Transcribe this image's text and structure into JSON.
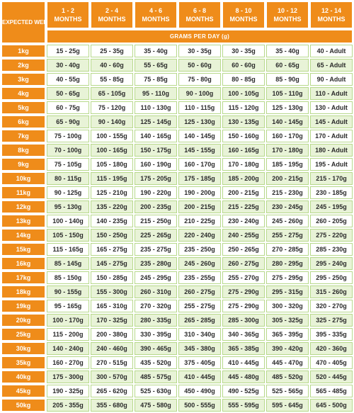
{
  "header": {
    "corner": "EXPECTED WEIGHT OF ADULT DOG (kg)",
    "ages": [
      [
        "1 - 2",
        "MONTHS"
      ],
      [
        "2 - 4",
        "MONTHS"
      ],
      [
        "4 - 6",
        "MONTHS"
      ],
      [
        "6 - 8",
        "MONTHS"
      ],
      [
        "8 - 10",
        "MONTHS"
      ],
      [
        "10 - 12",
        "MONTHS"
      ],
      [
        "12 - 14",
        "MONTHS"
      ]
    ],
    "subheader": "GRAMS PER DAY (g)"
  },
  "rows": [
    {
      "weight": "1kg",
      "values": [
        "15 - 25g",
        "25 - 35g",
        "35 - 40g",
        "30 - 35g",
        "30 - 35g",
        "35 - 40g",
        "40 - Adult"
      ]
    },
    {
      "weight": "2kg",
      "values": [
        "30 - 40g",
        "40 - 60g",
        "55 - 65g",
        "50 - 60g",
        "60 - 60g",
        "60 - 65g",
        "65 - Adult"
      ]
    },
    {
      "weight": "3kg",
      "values": [
        "40 - 55g",
        "55 - 85g",
        "75 - 85g",
        "75 - 80g",
        "80 - 85g",
        "85 - 90g",
        "90 - Adult"
      ]
    },
    {
      "weight": "4kg",
      "values": [
        "50 - 65g",
        "65 - 105g",
        "95 - 110g",
        "90 - 100g",
        "100 - 105g",
        "105 - 110g",
        "110 - Adult"
      ]
    },
    {
      "weight": "5kg",
      "values": [
        "60 - 75g",
        "75 - 120g",
        "110 - 130g",
        "110 - 115g",
        "115 - 120g",
        "125 - 130g",
        "130 - Adult"
      ]
    },
    {
      "weight": "6kg",
      "values": [
        "65 - 90g",
        "90 - 140g",
        "125 - 145g",
        "125 - 130g",
        "130 - 135g",
        "140 - 145g",
        "145 - Adult"
      ]
    },
    {
      "weight": "7kg",
      "values": [
        "75 - 100g",
        "100 - 155g",
        "140 - 165g",
        "140 - 145g",
        "150 - 160g",
        "160 - 170g",
        "170 - Adult"
      ]
    },
    {
      "weight": "8kg",
      "values": [
        "70 - 100g",
        "100 - 165g",
        "150 - 175g",
        "145 - 155g",
        "160 - 165g",
        "170 - 180g",
        "180 - Adult"
      ]
    },
    {
      "weight": "9kg",
      "values": [
        "75 - 105g",
        "105 - 180g",
        "160 - 190g",
        "160 - 170g",
        "170 - 180g",
        "185 - 195g",
        "195 - Adult"
      ]
    },
    {
      "weight": "10kg",
      "values": [
        "80 - 115g",
        "115 - 195g",
        "175 - 205g",
        "175 - 185g",
        "185 - 200g",
        "200 - 215g",
        "215 - 170g"
      ]
    },
    {
      "weight": "11kg",
      "values": [
        "90 - 125g",
        "125 - 210g",
        "190 - 220g",
        "190 - 200g",
        "200 - 215g",
        "215 - 230g",
        "230 - 185g"
      ]
    },
    {
      "weight": "12kg",
      "values": [
        "95 - 130g",
        "135 - 220g",
        "200 - 235g",
        "200 - 215g",
        "215 - 225g",
        "230 - 245g",
        "245 - 195g"
      ]
    },
    {
      "weight": "13kg",
      "values": [
        "100 - 140g",
        "140 - 235g",
        "215 - 250g",
        "210 - 225g",
        "230 - 240g",
        "245 - 260g",
        "260 - 205g"
      ]
    },
    {
      "weight": "14kg",
      "values": [
        "105 - 150g",
        "150 - 250g",
        "225 - 265g",
        "220 - 240g",
        "240 - 255g",
        "255 - 275g",
        "275 - 220g"
      ]
    },
    {
      "weight": "15kg",
      "values": [
        "115 - 165g",
        "165 - 275g",
        "235 - 275g",
        "235 - 250g",
        "250 - 265g",
        "270 - 285g",
        "285 - 230g"
      ]
    },
    {
      "weight": "16kg",
      "values": [
        "85 - 145g",
        "145 - 275g",
        "235 - 280g",
        "245 - 260g",
        "260 - 275g",
        "280 - 295g",
        "295 - 240g"
      ]
    },
    {
      "weight": "17kg",
      "values": [
        "85 - 150g",
        "150 - 285g",
        "245 - 295g",
        "235 - 255g",
        "255 - 270g",
        "275 - 295g",
        "295 - 250g"
      ]
    },
    {
      "weight": "18kg",
      "values": [
        "90 - 155g",
        "155 - 300g",
        "260 - 310g",
        "260 - 275g",
        "275 - 290g",
        "295 - 315g",
        "315 - 260g"
      ]
    },
    {
      "weight": "19kg",
      "values": [
        "95 - 165g",
        "165 - 310g",
        "270 - 320g",
        "255 - 275g",
        "275 - 290g",
        "300 - 320g",
        "320 - 270g"
      ]
    },
    {
      "weight": "20kg",
      "values": [
        "100 - 170g",
        "170 - 325g",
        "280 - 335g",
        "265 - 285g",
        "285 - 300g",
        "305 - 325g",
        "325 - 275g"
      ]
    },
    {
      "weight": "25kg",
      "values": [
        "115 - 200g",
        "200 - 380g",
        "330 - 395g",
        "310 - 340g",
        "340 - 365g",
        "365 - 395g",
        "395 - 335g"
      ]
    },
    {
      "weight": "30kg",
      "values": [
        "140 - 240g",
        "240 - 460g",
        "390 - 465g",
        "345 - 380g",
        "365 - 385g",
        "390 - 420g",
        "420 - 360g"
      ]
    },
    {
      "weight": "35kg",
      "values": [
        "160 - 270g",
        "270 - 515g",
        "435 - 520g",
        "375 - 405g",
        "410 - 445g",
        "445 - 470g",
        "470 - 405g"
      ]
    },
    {
      "weight": "40kg",
      "values": [
        "175 - 300g",
        "300 - 570g",
        "485 - 575g",
        "410 - 445g",
        "445 - 480g",
        "485 - 520g",
        "520 - 445g"
      ]
    },
    {
      "weight": "45kg",
      "values": [
        "190 - 325g",
        "265 - 620g",
        "525 - 630g",
        "450 - 490g",
        "490 - 525g",
        "525 - 565g",
        "565 - 485g"
      ]
    },
    {
      "weight": "50kg",
      "values": [
        "205 - 355g",
        "355 - 680g",
        "475 - 580g",
        "500 - 555g",
        "555 - 595g",
        "595 - 645g",
        "645 - 500g"
      ]
    }
  ]
}
